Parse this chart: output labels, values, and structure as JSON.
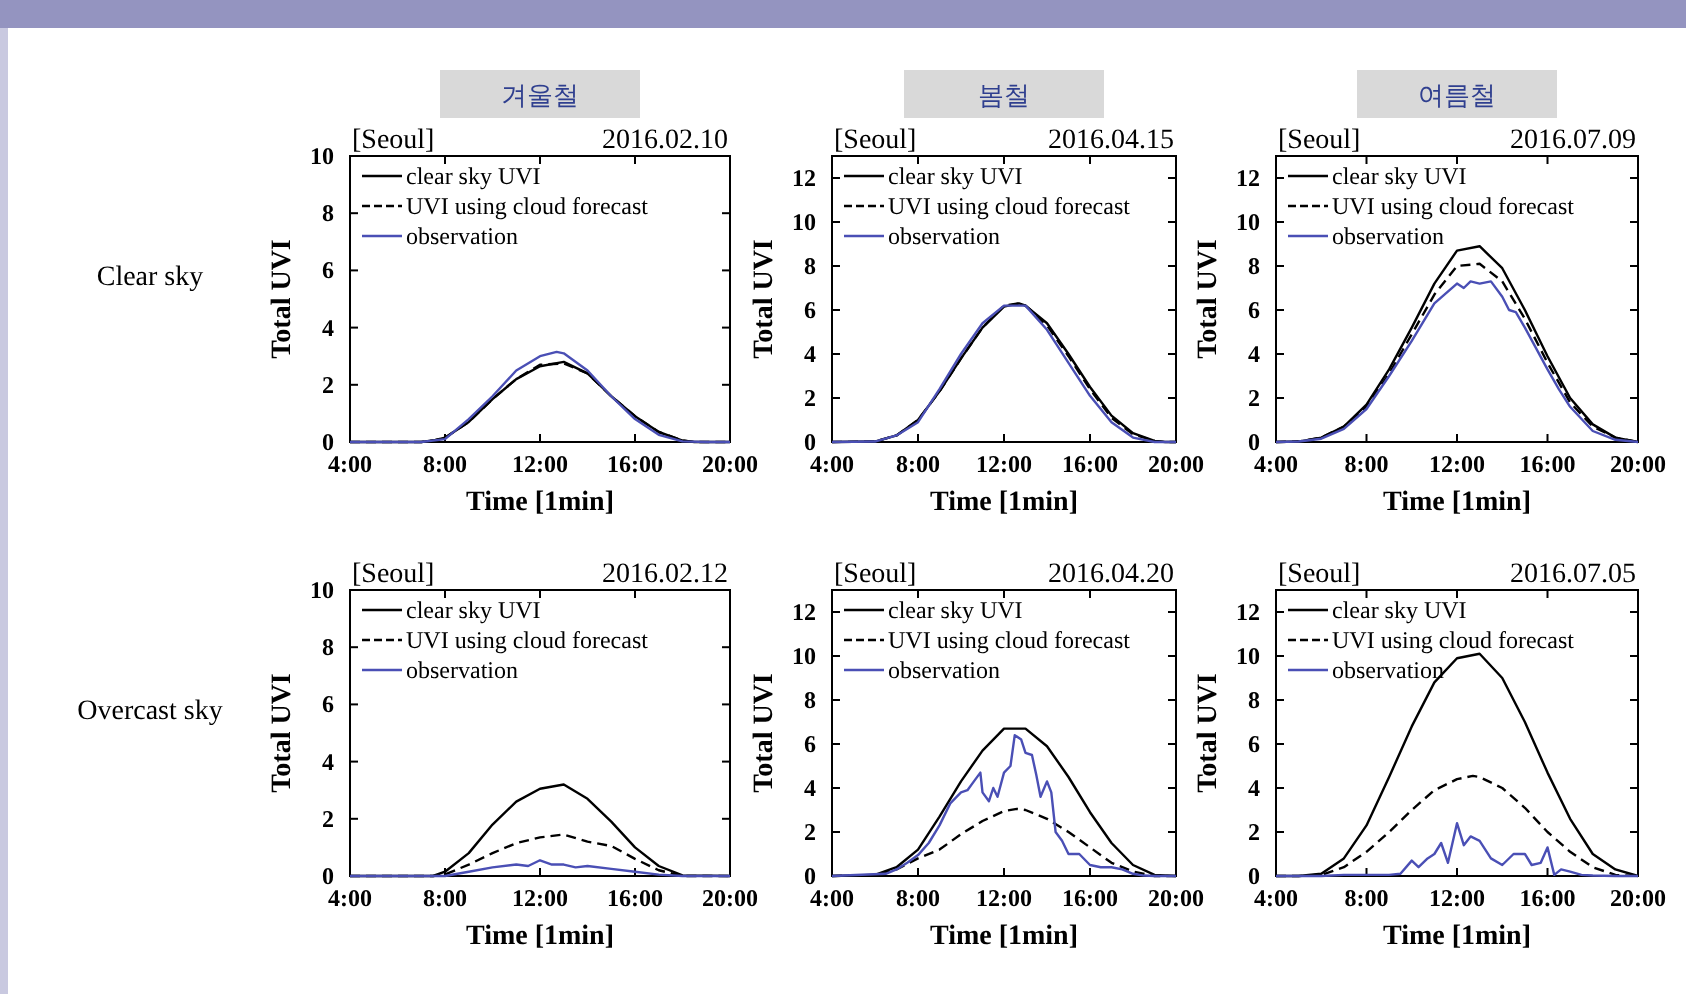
{
  "chart_data": [
    {
      "type": "line",
      "title": "[Seoul]",
      "subtitle": "2016.02.10",
      "annotations": [
        "겨울철",
        "Clear sky"
      ],
      "xlabel": "Time [1min]",
      "ylabel": "Total UVI",
      "xlim": [
        4,
        20
      ],
      "ylim": [
        0,
        10
      ],
      "xticks": [
        {
          "value": 4,
          "label": "4:00"
        },
        {
          "value": 8,
          "label": "8:00"
        },
        {
          "value": 12,
          "label": "12:00"
        },
        {
          "value": 16,
          "label": "16:00"
        },
        {
          "value": 20,
          "label": "20:00"
        }
      ],
      "yticks": [
        0,
        2,
        4,
        6,
        8,
        10
      ],
      "legend": "top left",
      "grid": false,
      "series": [
        {
          "name": "clear sky UVI",
          "color": "#000000",
          "line_style": "solid",
          "x": [
            4,
            7,
            7.5,
            8,
            9,
            10,
            11,
            12,
            13,
            14,
            15,
            16,
            17,
            18,
            18.5,
            20
          ],
          "values": [
            0,
            0,
            0.05,
            0.15,
            0.7,
            1.5,
            2.2,
            2.65,
            2.8,
            2.4,
            1.6,
            0.9,
            0.35,
            0.05,
            0,
            0
          ]
        },
        {
          "name": "UVI using cloud forecast",
          "color": "#000000",
          "line_style": "dashed",
          "x": [
            4,
            7,
            7.5,
            8,
            9,
            10,
            11,
            12,
            13,
            14,
            15,
            16,
            17,
            18,
            18.5,
            20
          ],
          "values": [
            0,
            0,
            0.05,
            0.15,
            0.7,
            1.5,
            2.2,
            2.7,
            2.75,
            2.4,
            1.6,
            0.9,
            0.35,
            0.05,
            0,
            0
          ]
        },
        {
          "name": "observation",
          "color": "#4a4fb5",
          "line_style": "solid",
          "x": [
            4,
            7,
            8,
            9,
            10,
            11,
            12,
            12.7,
            13,
            14,
            15,
            16,
            17,
            18,
            19,
            20
          ],
          "values": [
            0,
            0,
            0.1,
            0.8,
            1.6,
            2.5,
            3.0,
            3.15,
            3.1,
            2.5,
            1.6,
            0.8,
            0.25,
            0.02,
            0,
            0
          ]
        }
      ]
    },
    {
      "type": "line",
      "title": "[Seoul]",
      "subtitle": "2016.04.15",
      "annotations": [
        "봄철"
      ],
      "xlabel": "Time [1min]",
      "ylabel": "Total UVI",
      "xlim": [
        4,
        20
      ],
      "ylim": [
        0,
        13
      ],
      "xticks": [
        {
          "value": 4,
          "label": "4:00"
        },
        {
          "value": 8,
          "label": "8:00"
        },
        {
          "value": 12,
          "label": "12:00"
        },
        {
          "value": 16,
          "label": "16:00"
        },
        {
          "value": 20,
          "label": "20:00"
        }
      ],
      "yticks": [
        0,
        2,
        4,
        6,
        8,
        10,
        12
      ],
      "legend": "top left",
      "grid": false,
      "series": [
        {
          "name": "clear sky UVI",
          "color": "#000000",
          "line_style": "solid",
          "x": [
            4,
            6,
            7,
            8,
            9,
            10,
            11,
            12,
            12.7,
            13,
            14,
            15,
            16,
            17,
            18,
            19,
            19.5,
            20
          ],
          "values": [
            0,
            0.02,
            0.3,
            1.0,
            2.3,
            3.8,
            5.2,
            6.15,
            6.3,
            6.2,
            5.4,
            4.0,
            2.5,
            1.2,
            0.4,
            0.05,
            0,
            0
          ]
        },
        {
          "name": "UVI using cloud forecast",
          "color": "#000000",
          "line_style": "dashed",
          "x": [
            4,
            6,
            7,
            8,
            9,
            10,
            11,
            12,
            12.7,
            13,
            14,
            15,
            16,
            17,
            18,
            19,
            19.5,
            20
          ],
          "values": [
            0,
            0.02,
            0.3,
            1.0,
            2.3,
            3.8,
            5.2,
            6.2,
            6.3,
            6.2,
            5.3,
            3.9,
            2.4,
            1.1,
            0.35,
            0.05,
            0,
            0
          ]
        },
        {
          "name": "observation",
          "color": "#4a4fb5",
          "line_style": "solid",
          "x": [
            4,
            6,
            7,
            8,
            9,
            10,
            11,
            12,
            13,
            14,
            15,
            16,
            17,
            18,
            19,
            20
          ],
          "values": [
            0,
            0.02,
            0.3,
            0.9,
            2.4,
            4.0,
            5.4,
            6.2,
            6.2,
            5.1,
            3.6,
            2.1,
            0.9,
            0.2,
            0,
            0
          ]
        }
      ]
    },
    {
      "type": "line",
      "title": "[Seoul]",
      "subtitle": "2016.07.09",
      "annotations": [
        "여름철"
      ],
      "xlabel": "Time [1min]",
      "ylabel": "Total UVI",
      "xlim": [
        4,
        20
      ],
      "ylim": [
        0,
        13
      ],
      "xticks": [
        {
          "value": 4,
          "label": "4:00"
        },
        {
          "value": 8,
          "label": "8:00"
        },
        {
          "value": 12,
          "label": "12:00"
        },
        {
          "value": 16,
          "label": "16:00"
        },
        {
          "value": 20,
          "label": "20:00"
        }
      ],
      "yticks": [
        0,
        2,
        4,
        6,
        8,
        10,
        12
      ],
      "legend": "top left",
      "grid": false,
      "series": [
        {
          "name": "clear sky UVI",
          "color": "#000000",
          "line_style": "solid",
          "x": [
            4,
            5,
            6,
            7,
            8,
            9,
            10,
            11,
            12,
            13,
            14,
            15,
            16,
            17,
            18,
            19,
            20
          ],
          "values": [
            0,
            0.02,
            0.2,
            0.7,
            1.7,
            3.3,
            5.2,
            7.2,
            8.7,
            8.9,
            7.9,
            6.0,
            3.9,
            2.0,
            0.8,
            0.2,
            0
          ]
        },
        {
          "name": "UVI using cloud forecast",
          "color": "#000000",
          "line_style": "dashed",
          "x": [
            4,
            5,
            6,
            7,
            8,
            9,
            10,
            11,
            12,
            13,
            14,
            15,
            16,
            17,
            18,
            19,
            20
          ],
          "values": [
            0,
            0.02,
            0.2,
            0.7,
            1.6,
            3.1,
            4.9,
            6.7,
            8.0,
            8.1,
            7.3,
            5.6,
            3.6,
            1.8,
            0.7,
            0.2,
            0
          ]
        },
        {
          "name": "observation",
          "color": "#4a4fb5",
          "line_style": "solid",
          "x": [
            4,
            5,
            6,
            7,
            8,
            9,
            10,
            11,
            12,
            12.3,
            12.6,
            13,
            13.5,
            14,
            14.3,
            14.6,
            15,
            16,
            16.5,
            17,
            18,
            19,
            20
          ],
          "values": [
            0,
            0.02,
            0.15,
            0.6,
            1.5,
            3.0,
            4.6,
            6.3,
            7.2,
            7.0,
            7.3,
            7.2,
            7.3,
            6.6,
            6.0,
            5.9,
            5.2,
            3.3,
            2.4,
            1.6,
            0.5,
            0.1,
            0
          ]
        }
      ]
    },
    {
      "type": "line",
      "title": "[Seoul]",
      "subtitle": "2016.02.12",
      "annotations": [
        "Overcast sky"
      ],
      "xlabel": "Time [1min]",
      "ylabel": "Total UVI",
      "xlim": [
        4,
        20
      ],
      "ylim": [
        0,
        10
      ],
      "xticks": [
        {
          "value": 4,
          "label": "4:00"
        },
        {
          "value": 8,
          "label": "8:00"
        },
        {
          "value": 12,
          "label": "12:00"
        },
        {
          "value": 16,
          "label": "16:00"
        },
        {
          "value": 20,
          "label": "20:00"
        }
      ],
      "yticks": [
        0,
        2,
        4,
        6,
        8,
        10
      ],
      "legend": "top left",
      "grid": false,
      "series": [
        {
          "name": "clear sky UVI",
          "color": "#000000",
          "line_style": "solid",
          "x": [
            4,
            7.5,
            8,
            9,
            10,
            11,
            12,
            13,
            14,
            15,
            16,
            17,
            18,
            20
          ],
          "values": [
            0,
            0,
            0.15,
            0.8,
            1.8,
            2.6,
            3.05,
            3.2,
            2.7,
            1.9,
            1.0,
            0.35,
            0.02,
            0
          ]
        },
        {
          "name": "UVI using cloud forecast",
          "color": "#000000",
          "line_style": "dashed",
          "x": [
            4,
            7.5,
            8,
            9,
            10,
            11,
            12,
            13,
            14,
            15,
            16,
            17,
            18,
            20
          ],
          "values": [
            0,
            0,
            0.05,
            0.4,
            0.8,
            1.15,
            1.35,
            1.45,
            1.2,
            1.05,
            0.6,
            0.2,
            0,
            0
          ]
        },
        {
          "name": "observation",
          "color": "#4a4fb5",
          "line_style": "solid",
          "x": [
            4,
            8,
            9,
            10,
            11,
            11.5,
            12,
            12.5,
            13,
            13.5,
            14,
            15,
            16,
            17,
            18,
            20
          ],
          "values": [
            0,
            0,
            0.15,
            0.3,
            0.4,
            0.35,
            0.55,
            0.4,
            0.4,
            0.3,
            0.35,
            0.25,
            0.15,
            0.05,
            0,
            0
          ]
        }
      ]
    },
    {
      "type": "line",
      "title": "[Seoul]",
      "subtitle": "2016.04.20",
      "xlabel": "Time [1min]",
      "ylabel": "Total UVI",
      "xlim": [
        4,
        20
      ],
      "ylim": [
        0,
        13
      ],
      "xticks": [
        {
          "value": 4,
          "label": "4:00"
        },
        {
          "value": 8,
          "label": "8:00"
        },
        {
          "value": 12,
          "label": "12:00"
        },
        {
          "value": 16,
          "label": "16:00"
        },
        {
          "value": 20,
          "label": "20:00"
        }
      ],
      "yticks": [
        0,
        2,
        4,
        6,
        8,
        10,
        12
      ],
      "legend": "top left",
      "grid": false,
      "series": [
        {
          "name": "clear sky UVI",
          "color": "#000000",
          "line_style": "solid",
          "x": [
            4,
            6,
            7,
            8,
            9,
            10,
            11,
            12,
            13,
            14,
            15,
            16,
            17,
            18,
            19,
            20
          ],
          "values": [
            0,
            0.05,
            0.4,
            1.2,
            2.7,
            4.3,
            5.7,
            6.7,
            6.7,
            5.9,
            4.5,
            2.9,
            1.5,
            0.5,
            0.05,
            0
          ]
        },
        {
          "name": "UVI using cloud forecast",
          "color": "#000000",
          "line_style": "dashed",
          "x": [
            4,
            6,
            7,
            8,
            9,
            10,
            11,
            12,
            12.6,
            13,
            14,
            15,
            16,
            17,
            18,
            19,
            20
          ],
          "values": [
            0,
            0.05,
            0.3,
            0.8,
            1.2,
            1.9,
            2.5,
            2.95,
            3.05,
            3.0,
            2.6,
            2.0,
            1.3,
            0.6,
            0.2,
            0,
            0
          ]
        },
        {
          "name": "observation",
          "color": "#4a4fb5",
          "line_style": "solid",
          "x": [
            4,
            6.5,
            7,
            7.5,
            8,
            8.5,
            9,
            9.5,
            10,
            10.3,
            10.6,
            10.9,
            11,
            11.3,
            11.5,
            11.7,
            12,
            12.3,
            12.5,
            12.8,
            13,
            13.3,
            13.5,
            13.7,
            14,
            14.2,
            14.4,
            14.7,
            15,
            15.5,
            16,
            16.5,
            17,
            17.5,
            18,
            18.5,
            19,
            20
          ],
          "values": [
            0,
            0.1,
            0.3,
            0.6,
            0.95,
            1.5,
            2.3,
            3.3,
            3.8,
            3.9,
            4.3,
            4.7,
            3.8,
            3.4,
            4.0,
            3.6,
            4.7,
            5.0,
            6.4,
            6.2,
            5.6,
            5.5,
            4.6,
            3.6,
            4.3,
            3.8,
            2.0,
            1.6,
            1.0,
            1.0,
            0.5,
            0.4,
            0.4,
            0.3,
            0.1,
            0.02,
            0,
            0
          ]
        }
      ]
    },
    {
      "type": "line",
      "title": "[Seoul]",
      "subtitle": "2016.07.05",
      "xlabel": "Time [1min]",
      "ylabel": "Total UVI",
      "xlim": [
        4,
        20
      ],
      "ylim": [
        0,
        13
      ],
      "xticks": [
        {
          "value": 4,
          "label": "4:00"
        },
        {
          "value": 8,
          "label": "8:00"
        },
        {
          "value": 12,
          "label": "12:00"
        },
        {
          "value": 16,
          "label": "16:00"
        },
        {
          "value": 20,
          "label": "20:00"
        }
      ],
      "yticks": [
        0,
        2,
        4,
        6,
        8,
        10,
        12
      ],
      "legend": "top left",
      "grid": false,
      "series": [
        {
          "name": "clear sky UVI",
          "color": "#000000",
          "line_style": "solid",
          "x": [
            4,
            5,
            6,
            7,
            8,
            9,
            10,
            11,
            12,
            13,
            14,
            15,
            16,
            17,
            18,
            19,
            20
          ],
          "values": [
            0,
            0,
            0.1,
            0.8,
            2.3,
            4.5,
            6.8,
            8.8,
            9.9,
            10.1,
            9.0,
            7.0,
            4.7,
            2.6,
            1.0,
            0.3,
            0
          ]
        },
        {
          "name": "UVI using cloud forecast",
          "color": "#000000",
          "line_style": "dashed",
          "x": [
            4,
            5,
            6,
            7,
            8,
            9,
            10,
            11,
            12,
            12.7,
            13,
            14,
            15,
            16,
            17,
            18,
            19,
            20
          ],
          "values": [
            0,
            0,
            0.05,
            0.4,
            1.1,
            2.0,
            3.0,
            3.9,
            4.4,
            4.55,
            4.5,
            4.0,
            3.1,
            2.0,
            1.1,
            0.4,
            0.05,
            0
          ]
        },
        {
          "name": "observation",
          "color": "#4a4fb5",
          "line_style": "solid",
          "x": [
            4,
            6,
            7,
            8,
            9,
            9.5,
            10,
            10.3,
            10.7,
            11,
            11.3,
            11.6,
            12,
            12.3,
            12.6,
            13,
            13.5,
            14,
            14.5,
            15,
            15.3,
            15.7,
            16,
            16.3,
            16.6,
            17,
            17.5,
            18,
            19,
            20
          ],
          "values": [
            0,
            0,
            0.05,
            0.05,
            0.05,
            0.1,
            0.7,
            0.4,
            0.8,
            1.0,
            1.5,
            0.6,
            2.4,
            1.4,
            1.8,
            1.6,
            0.8,
            0.5,
            1.0,
            1.0,
            0.5,
            0.6,
            1.3,
            0.05,
            0.3,
            0.2,
            0.05,
            0.02,
            0,
            0
          ]
        }
      ]
    }
  ]
}
